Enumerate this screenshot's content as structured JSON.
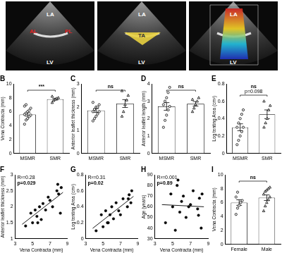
{
  "panel_a": {
    "images": [
      {
        "labels": [
          {
            "text": "LA",
            "color": "#ffffff"
          },
          {
            "text": "LV",
            "color": "#ffffff"
          },
          {
            "text": "AL",
            "color": "#e02020"
          },
          {
            "text": "PL",
            "color": "#e02020"
          }
        ]
      },
      {
        "labels": [
          {
            "text": "LA",
            "color": "#ffffff"
          },
          {
            "text": "LV",
            "color": "#ffffff"
          },
          {
            "text": "TA",
            "color": "#333333"
          }
        ]
      },
      {
        "labels": [
          {
            "text": "LA",
            "color": "#ffffff"
          },
          {
            "text": "LV",
            "color": "#ffffff"
          }
        ]
      }
    ]
  },
  "chart_data": [
    {
      "type": "bar",
      "title": "B",
      "ylabel": "Vena Contracta (mm)",
      "categories": [
        "MSMR",
        "SMR"
      ],
      "values": [
        5.6,
        7.8
      ],
      "errors": [
        0.25,
        0.13
      ],
      "color": "#ffffff",
      "points": [
        {
          "category": "MSMR",
          "marker": "circle",
          "values": [
            4.2,
            4.8,
            5.0,
            5.3,
            5.5,
            5.6,
            5.8,
            6.0,
            6.2,
            6.5,
            6.8,
            7.0
          ]
        },
        {
          "category": "SMR",
          "marker": "triangle",
          "values": [
            7.3,
            7.6,
            7.8,
            7.9,
            8.0,
            8.2
          ]
        }
      ],
      "ylim": [
        0,
        10
      ],
      "yticks": [
        0,
        2,
        4,
        6,
        8,
        10
      ],
      "grid": false,
      "annotations": [
        "***"
      ]
    },
    {
      "type": "bar",
      "title": "C",
      "ylabel": "Anterior leaflet thickness (mm)",
      "categories": [
        "MSMR",
        "SMR"
      ],
      "values": [
        1.85,
        2.15
      ],
      "errors": [
        0.08,
        0.17
      ],
      "color": "#ffffff",
      "points": [
        {
          "category": "MSMR",
          "marker": "circle",
          "values": [
            1.4,
            1.5,
            1.6,
            1.7,
            1.8,
            1.8,
            1.9,
            2.0,
            2.0,
            2.1,
            2.2
          ]
        },
        {
          "category": "SMR",
          "marker": "triangle",
          "values": [
            1.6,
            1.8,
            2.1,
            2.3,
            2.5,
            2.7
          ]
        }
      ],
      "ylim": [
        0,
        3
      ],
      "yticks": [
        0,
        1,
        2,
        3
      ],
      "grid": false,
      "annotations": [
        "ns"
      ]
    },
    {
      "type": "bar",
      "title": "D",
      "ylabel": "Anterior leaflet length (mm)",
      "categories": [
        "MSMR",
        "SMR"
      ],
      "values": [
        2.7,
        2.85
      ],
      "errors": [
        0.22,
        0.13
      ],
      "color": "#ffffff",
      "points": [
        {
          "category": "MSMR",
          "marker": "circle",
          "values": [
            1.5,
            1.9,
            2.2,
            2.5,
            2.7,
            2.8,
            3.0,
            3.2,
            3.5,
            3.8
          ]
        },
        {
          "category": "SMR",
          "marker": "triangle",
          "values": [
            2.4,
            2.6,
            2.8,
            3.0,
            3.2,
            3.1
          ]
        }
      ],
      "ylim": [
        0,
        4
      ],
      "yticks": [
        0,
        1,
        2,
        3,
        4
      ],
      "grid": false,
      "annotations": [
        "ns"
      ]
    },
    {
      "type": "bar",
      "title": "E",
      "ylabel": "Log tenting Area (cm²)",
      "categories": [
        "MSMR",
        "SMR"
      ],
      "values": [
        0.3,
        0.45
      ],
      "errors": [
        0.04,
        0.05
      ],
      "color": "#ffffff",
      "points": [
        {
          "category": "MSMR",
          "marker": "circle",
          "values": [
            0.1,
            0.15,
            0.2,
            0.25,
            0.3,
            0.3,
            0.35,
            0.4,
            0.45,
            0.5
          ]
        },
        {
          "category": "SMR",
          "marker": "triangle",
          "values": [
            0.3,
            0.35,
            0.4,
            0.5,
            0.55,
            0.6
          ]
        }
      ],
      "ylim": [
        0,
        0.8
      ],
      "yticks": [
        0,
        0.2,
        0.4,
        0.6,
        0.8
      ],
      "grid": false,
      "annotations": [
        "ns",
        "p=0.098"
      ]
    },
    {
      "type": "scatter",
      "title": "F",
      "xlabel": "Vena Contracta (mm)",
      "ylabel": "Anterior leaflet thickness (mm)",
      "x": [
        4.2,
        4.8,
        5.0,
        5.3,
        5.5,
        5.8,
        6.0,
        6.2,
        6.5,
        7.0,
        7.3,
        7.8,
        8.0,
        8.2,
        8.3,
        5.6,
        6.8,
        7.9
      ],
      "values": [
        1.4,
        1.8,
        1.5,
        1.9,
        1.7,
        2.0,
        1.6,
        2.1,
        1.9,
        2.2,
        2.0,
        2.5,
        2.4,
        1.8,
        2.6,
        1.5,
        2.3,
        2.7
      ],
      "color": "#000000",
      "marker": "circle",
      "fit": {
        "x": [
          3.8,
          8.5
        ],
        "values": [
          1.45,
          2.45
        ]
      },
      "xlim": [
        3,
        9
      ],
      "xticks": [
        3,
        5,
        7,
        9
      ],
      "ylim": [
        1,
        3
      ],
      "yticks": [
        1,
        1.5,
        2,
        2.5,
        3
      ],
      "grid": false,
      "annotations": [
        "R²=0.28",
        "p=0.029"
      ]
    },
    {
      "type": "scatter",
      "title": "G",
      "xlabel": "Vena Contracta (mm)",
      "ylabel": "Log tenting Area (cm²)",
      "x": [
        4.2,
        4.8,
        5.0,
        5.3,
        5.5,
        5.8,
        6.0,
        6.2,
        6.5,
        7.0,
        7.3,
        7.8,
        8.0,
        8.2,
        8.3,
        5.6,
        6.8,
        7.9
      ],
      "values": [
        0.1,
        0.3,
        0.15,
        0.35,
        0.2,
        0.3,
        0.4,
        0.25,
        0.45,
        0.3,
        0.5,
        0.4,
        0.55,
        0.45,
        0.6,
        0.2,
        0.35,
        0.5
      ],
      "color": "#000000",
      "marker": "circle",
      "fit": {
        "x": [
          3.8,
          8.5
        ],
        "values": [
          0.13,
          0.53
        ]
      },
      "xlim": [
        3,
        9
      ],
      "xticks": [
        3,
        5,
        7,
        9
      ],
      "ylim": [
        0,
        0.8
      ],
      "yticks": [
        0,
        0.2,
        0.4,
        0.6,
        0.8
      ],
      "grid": false,
      "annotations": [
        "R²=0.31",
        "p=0.02"
      ]
    },
    {
      "type": "scatter",
      "title": "H",
      "xlabel": "Vena Contracta (mm)",
      "ylabel": "Age (years)",
      "x": [
        4.2,
        4.8,
        5.0,
        5.3,
        5.5,
        5.8,
        6.0,
        6.2,
        6.5,
        7.0,
        7.3,
        7.8,
        8.0,
        8.2,
        8.3,
        5.6,
        6.8,
        7.9
      ],
      "values": [
        45,
        72,
        60,
        38,
        80,
        55,
        65,
        70,
        50,
        62,
        75,
        58,
        68,
        40,
        72,
        85,
        60,
        52
      ],
      "color": "#000000",
      "marker": "circle",
      "fit": {
        "x": [
          3.8,
          8.5
        ],
        "values": [
          62,
          60
        ]
      },
      "xlim": [
        3,
        9
      ],
      "xticks": [
        3,
        5,
        7,
        9
      ],
      "ylim": [
        30,
        90
      ],
      "yticks": [
        30,
        40,
        50,
        60,
        70,
        80,
        90
      ],
      "grid": false,
      "annotations": [
        "R²=0.001",
        "p=0.89"
      ]
    },
    {
      "type": "bar",
      "title": "I",
      "ylabel": "Vena Contracta (mm)",
      "categories": [
        "Female",
        "Male"
      ],
      "values": [
        6.0,
        6.7
      ],
      "errors": [
        0.4,
        0.4
      ],
      "color": "#ffffff",
      "points": [
        {
          "category": "Female",
          "marker": "circle",
          "values": [
            4.3,
            5.2,
            5.6,
            6.0,
            6.3,
            6.8,
            7.5
          ]
        },
        {
          "category": "Male",
          "marker": "triangle",
          "values": [
            4.8,
            5.5,
            6.0,
            6.4,
            6.8,
            7.2,
            7.6,
            7.8,
            8.0,
            8.2
          ]
        }
      ],
      "ylim": [
        0,
        10
      ],
      "yticks": [
        0,
        2,
        4,
        6,
        8,
        10
      ],
      "grid": false,
      "annotations": [
        "ns"
      ]
    }
  ]
}
